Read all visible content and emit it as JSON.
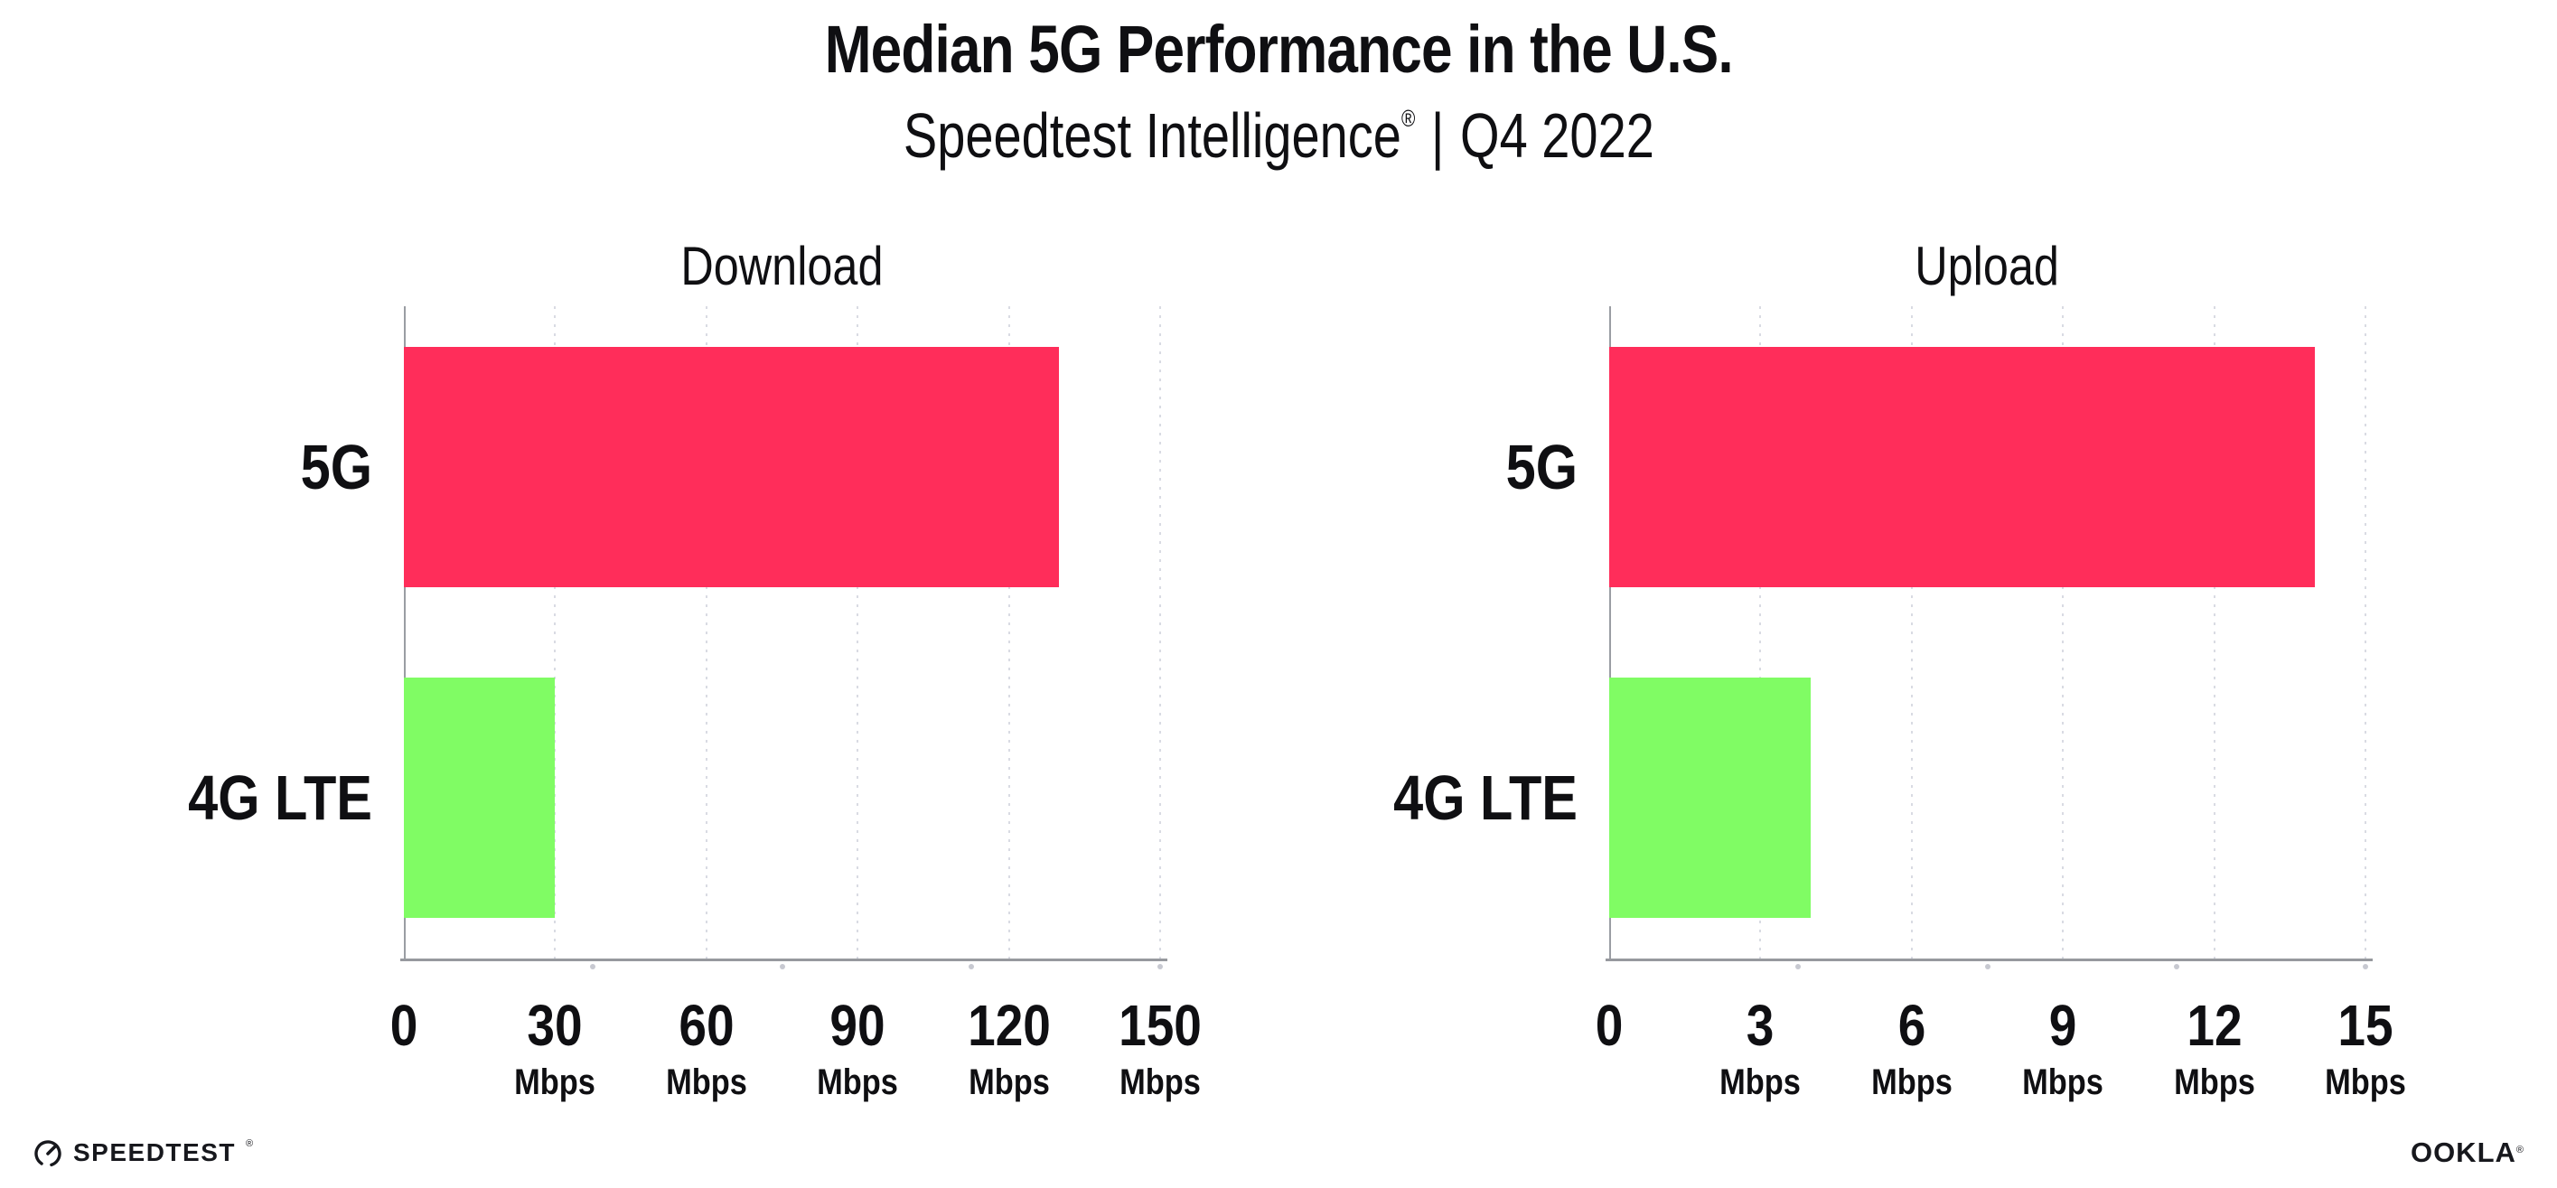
{
  "header": {
    "title": "Median 5G Performance in the U.S.",
    "subtitle_brand": "Speedtest Intelligence",
    "subtitle_reg": "®",
    "subtitle_sep": "|",
    "subtitle_period": "Q4 2022"
  },
  "chart_data": [
    {
      "type": "bar",
      "orientation": "horizontal",
      "title": "Download",
      "categories": [
        "5G",
        "4G LTE"
      ],
      "values": [
        130,
        30
      ],
      "unit": "Mbps",
      "xlim": [
        0,
        150
      ],
      "xticks": [
        0,
        30,
        60,
        90,
        120,
        150
      ],
      "bar_colors": [
        "#ff2d5a",
        "#80fc64"
      ],
      "grid": "vertical-dotted",
      "legend_position": "none"
    },
    {
      "type": "bar",
      "orientation": "horizontal",
      "title": "Upload",
      "categories": [
        "5G",
        "4G LTE"
      ],
      "values": [
        14,
        4
      ],
      "unit": "Mbps",
      "xlim": [
        0,
        15
      ],
      "xticks": [
        0,
        3,
        6,
        9,
        12,
        15
      ],
      "bar_colors": [
        "#ff2d5a",
        "#80fc64"
      ],
      "grid": "vertical-dotted",
      "legend_position": "none"
    }
  ],
  "footer": {
    "speedtest_label": "SPEEDTEST",
    "speedtest_reg": "®",
    "ookla_label": "OOKLA",
    "ookla_reg": "®"
  },
  "colors": {
    "bar_5g": "#ff2d5a",
    "bar_4g_lte": "#80fc64",
    "axis": "#97999e",
    "gridline": "#d9dbe3",
    "text": "#0f0f12",
    "background": "#ffffff"
  }
}
